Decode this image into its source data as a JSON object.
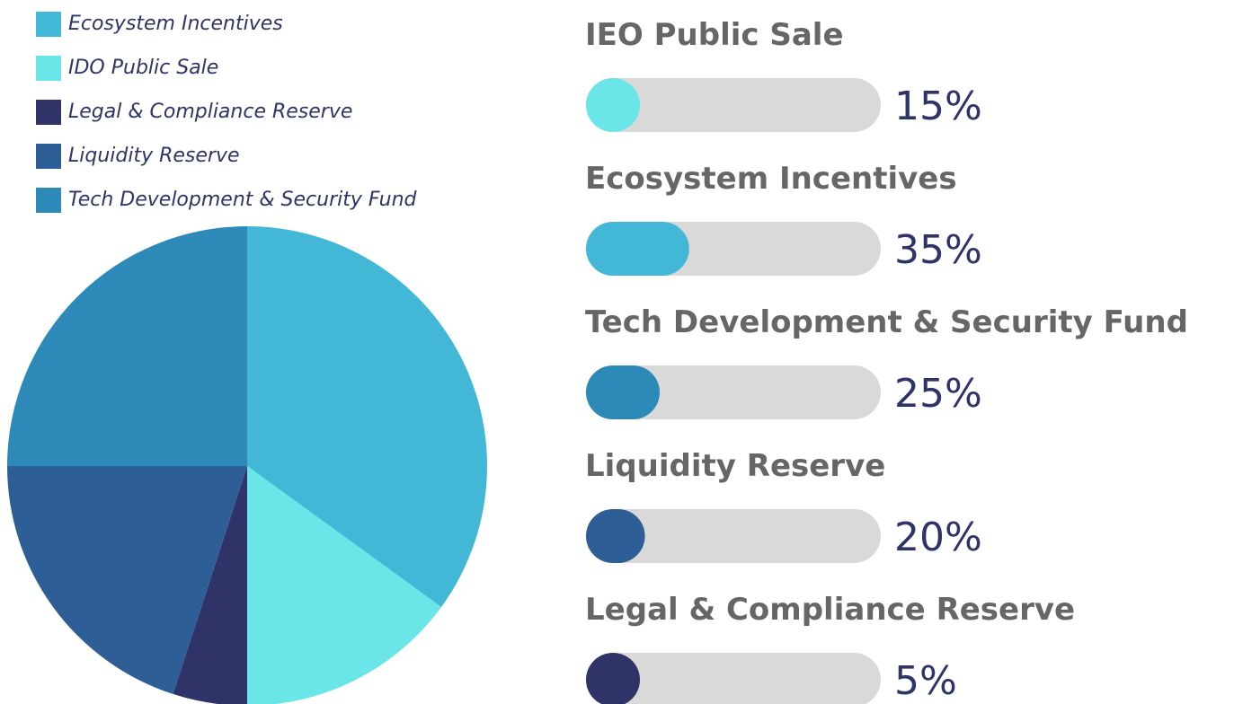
{
  "chart_data": [
    {
      "type": "pie",
      "categories": [
        "Ecosystem Incentives",
        "IDO Public Sale",
        "Legal & Compliance Reserve",
        "Liquidity Reserve",
        "Tech Development & Security Fund"
      ],
      "values": [
        35,
        15,
        5,
        20,
        25
      ],
      "colors": [
        "#42b8d6",
        "#6ae5e8",
        "#2f3368",
        "#2e5e96",
        "#2d8ab8"
      ],
      "legend": "top-left"
    },
    {
      "type": "progress",
      "categories": [
        "IEO Public Sale",
        "Ecosystem Incentives",
        "Tech Development & Security Fund",
        "Liquidity Reserve",
        "Legal & Compliance Reserve"
      ],
      "values": [
        15,
        35,
        25,
        20,
        5
      ],
      "value_labels": [
        "15%",
        "35%",
        "25%",
        "20%",
        "5%"
      ],
      "colors": [
        "#6ae5e8",
        "#42b8d6",
        "#2d8ab8",
        "#2e5e96",
        "#2f3368"
      ],
      "track_color": "#d9d9d9",
      "xlim": [
        0,
        100
      ]
    }
  ]
}
